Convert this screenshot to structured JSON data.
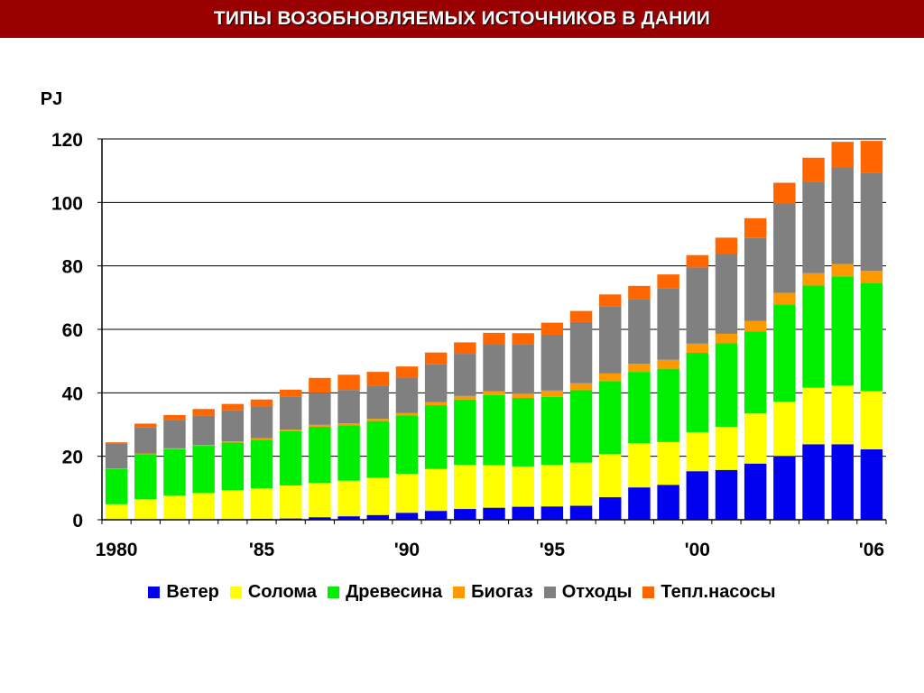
{
  "title": "ТИПЫ ВОЗОБНОВЛЯЕМЫХ ИСТОЧНИКОВ В ДАНИИ",
  "chart_data": {
    "type": "bar",
    "stacked": true,
    "ylabel": "PJ",
    "xlabel": "",
    "ylim": [
      0,
      120
    ],
    "yticks": [
      0,
      20,
      40,
      60,
      80,
      100,
      120
    ],
    "grid": true,
    "legend_position": "bottom",
    "categories": [
      "1980",
      "1981",
      "1982",
      "1983",
      "1984",
      "1985",
      "1986",
      "1987",
      "1988",
      "1989",
      "1990",
      "1991",
      "1992",
      "1993",
      "1994",
      "1995",
      "1996",
      "1997",
      "1998",
      "1999",
      "2000",
      "2001",
      "2002",
      "2003",
      "2004",
      "2005",
      "2006"
    ],
    "xtick_labels": [
      {
        "index": 0,
        "label": "1980"
      },
      {
        "index": 5,
        "label": "'85"
      },
      {
        "index": 10,
        "label": "'90"
      },
      {
        "index": 15,
        "label": "'95"
      },
      {
        "index": 20,
        "label": "'00"
      },
      {
        "index": 26,
        "label": "'06"
      }
    ],
    "series": [
      {
        "name": "Ветер",
        "color": "#0000ee",
        "values": [
          0,
          0,
          0,
          0.1,
          0.2,
          0.3,
          0.4,
          0.8,
          1.1,
          1.5,
          2.2,
          2.8,
          3.4,
          3.8,
          4.1,
          4.2,
          4.4,
          7.1,
          10.2,
          11.0,
          15.3,
          15.7,
          17.7,
          20.1,
          23.8,
          23.8,
          22.2
        ]
      },
      {
        "name": "Солома",
        "color": "#ffff00",
        "values": [
          4.9,
          6.5,
          7.6,
          8.3,
          9.1,
          9.6,
          10.4,
          10.8,
          11.2,
          11.7,
          12.3,
          13.2,
          13.9,
          13.4,
          12.7,
          13.1,
          13.6,
          13.6,
          13.9,
          13.5,
          12.3,
          13.6,
          15.8,
          17.1,
          17.8,
          18.5,
          18.3
        ]
      },
      {
        "name": "Древесина",
        "color": "#00ee00",
        "values": [
          11.1,
          14.2,
          14.6,
          14.9,
          15.0,
          15.3,
          17.1,
          17.7,
          17.5,
          17.9,
          18.4,
          20.1,
          20.6,
          22.1,
          21.6,
          21.4,
          22.8,
          23.0,
          22.5,
          23.1,
          25.0,
          26.3,
          25.8,
          30.6,
          32.2,
          34.4,
          34.0
        ]
      },
      {
        "name": "Биогаз",
        "color": "#ff9900",
        "values": [
          0.1,
          0.2,
          0.3,
          0.3,
          0.4,
          0.5,
          0.5,
          0.6,
          0.6,
          0.7,
          0.7,
          1.0,
          1.1,
          1.2,
          1.3,
          2.0,
          2.2,
          2.4,
          2.6,
          2.8,
          2.9,
          3.0,
          3.4,
          3.7,
          3.9,
          3.9,
          3.9
        ]
      },
      {
        "name": "Отходы",
        "color": "#808080",
        "values": [
          7.8,
          8.2,
          8.9,
          9.2,
          9.8,
          10.0,
          10.3,
          10.1,
          10.5,
          10.4,
          11.2,
          11.9,
          13.3,
          14.8,
          15.7,
          17.6,
          19.3,
          21.2,
          20.3,
          22.6,
          24.0,
          25.0,
          26.1,
          28.3,
          28.9,
          30.3,
          31.0
        ]
      },
      {
        "name": "Тепл.насосы",
        "color": "#ff6600",
        "values": [
          0.5,
          1.2,
          1.6,
          2.1,
          2.0,
          2.2,
          2.3,
          4.7,
          4.8,
          4.4,
          3.5,
          3.7,
          3.6,
          3.6,
          3.4,
          3.8,
          3.5,
          3.7,
          4.2,
          4.3,
          3.9,
          5.3,
          6.2,
          6.4,
          7.5,
          8.2,
          10.0
        ]
      }
    ]
  }
}
